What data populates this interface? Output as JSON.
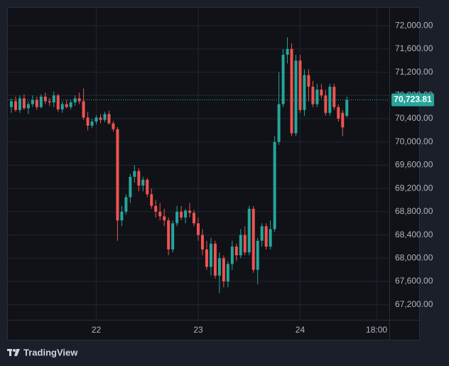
{
  "chart_data": {
    "type": "candlestick",
    "brand": "TradingView",
    "up_color": "#26a69a",
    "down_color": "#ef5350",
    "grid": true,
    "price_label": "70,723.81",
    "xlim": [
      -1,
      89
    ],
    "xticks": [
      {
        "value": 20,
        "label": "22"
      },
      {
        "value": 44,
        "label": "23"
      },
      {
        "value": 68,
        "label": "24"
      },
      {
        "value": 86,
        "label": "18:00"
      }
    ],
    "ylim": [
      66940,
      72320
    ],
    "yticks": [
      {
        "value": 67200,
        "label": "67,200.00"
      },
      {
        "value": 67600,
        "label": "67,600.00"
      },
      {
        "value": 68000,
        "label": "68,000.00"
      },
      {
        "value": 68400,
        "label": "68,400.00"
      },
      {
        "value": 68800,
        "label": "68,800.00"
      },
      {
        "value": 69200,
        "label": "69,200.00"
      },
      {
        "value": 69600,
        "label": "69,600.00"
      },
      {
        "value": 70000,
        "label": "70,000.00"
      },
      {
        "value": 70400,
        "label": "70,400.00"
      },
      {
        "value": 70800,
        "label": "70,800.00"
      },
      {
        "value": 71200,
        "label": "71,200.00"
      },
      {
        "value": 71600,
        "label": "71,600.00"
      },
      {
        "value": 72000,
        "label": "72,000.00"
      }
    ],
    "open": [
      70600,
      70700,
      70550,
      70750,
      70580,
      70650,
      70720,
      70600,
      70780,
      70700,
      70680,
      70800,
      70560,
      70650,
      70600,
      70680,
      70750,
      70700,
      70420,
      70280,
      70350,
      70420,
      70380,
      70480,
      70320,
      70220,
      68650,
      68800,
      69050,
      69400,
      69500,
      69250,
      69350,
      69100,
      68900,
      68800,
      68720,
      68650,
      68150,
      68600,
      68800,
      68700,
      68820,
      68780,
      68600,
      68400,
      68150,
      67850,
      68250,
      67700,
      68000,
      67600,
      67900,
      68200,
      68050,
      68400,
      68100,
      68850,
      67800,
      68300,
      68550,
      68200,
      68500,
      70000,
      70650,
      71500,
      71600,
      70150,
      71400,
      70550,
      71150,
      70950,
      70650,
      70900,
      70800,
      70500,
      70950,
      70600,
      70500,
      70450
    ],
    "high": [
      70750,
      70780,
      70800,
      70820,
      70700,
      70800,
      70780,
      70820,
      70850,
      70760,
      70870,
      70830,
      70700,
      70720,
      70720,
      70800,
      70850,
      70920,
      70520,
      70400,
      70460,
      70480,
      70520,
      70540,
      70360,
      70260,
      68900,
      69100,
      69450,
      69600,
      69550,
      69400,
      69380,
      69200,
      69000,
      68950,
      68850,
      68700,
      68650,
      68900,
      68900,
      68850,
      68950,
      68830,
      68700,
      68500,
      68300,
      68350,
      68300,
      68100,
      68050,
      67950,
      68300,
      68250,
      68500,
      68550,
      68900,
      68900,
      68350,
      68600,
      68600,
      68650,
      70100,
      71200,
      71600,
      71800,
      71700,
      71500,
      71500,
      71250,
      71250,
      71050,
      71000,
      71000,
      70900,
      71000,
      71000,
      70650,
      70550,
      70780
    ],
    "low": [
      70500,
      70520,
      70500,
      70550,
      70480,
      70600,
      70550,
      70580,
      70650,
      70620,
      70600,
      70520,
      70500,
      70580,
      70560,
      70620,
      70650,
      70380,
      70200,
      70240,
      70300,
      70320,
      70340,
      70300,
      70180,
      68300,
      68550,
      68750,
      68950,
      69300,
      69150,
      69150,
      69050,
      68850,
      68700,
      68650,
      68550,
      68050,
      68100,
      68550,
      68650,
      68600,
      68700,
      68550,
      68300,
      68050,
      67800,
      67700,
      67650,
      67400,
      67500,
      67500,
      67800,
      67950,
      68000,
      68050,
      68050,
      67750,
      67550,
      68200,
      68150,
      68150,
      68450,
      69950,
      70600,
      71350,
      70100,
      70100,
      70500,
      70450,
      70700,
      70600,
      70600,
      70750,
      70450,
      70450,
      70550,
      70350,
      70100,
      70420
    ],
    "close": [
      70700,
      70550,
      70750,
      70580,
      70650,
      70720,
      70600,
      70780,
      70700,
      70680,
      70800,
      70560,
      70650,
      70600,
      70680,
      70750,
      70700,
      70420,
      70280,
      70350,
      70420,
      70380,
      70480,
      70320,
      70220,
      68650,
      68800,
      69050,
      69400,
      69500,
      69250,
      69350,
      69100,
      68900,
      68800,
      68720,
      68650,
      68150,
      68600,
      68800,
      68700,
      68820,
      68780,
      68600,
      68400,
      68150,
      67850,
      68250,
      67700,
      68000,
      67600,
      67900,
      68200,
      68050,
      68400,
      68100,
      68850,
      67800,
      68300,
      68550,
      68200,
      68500,
      70000,
      70650,
      71500,
      71600,
      70150,
      71400,
      70550,
      71150,
      70950,
      70650,
      70900,
      70800,
      70500,
      70950,
      70600,
      70400,
      70250,
      70723.81
    ]
  }
}
